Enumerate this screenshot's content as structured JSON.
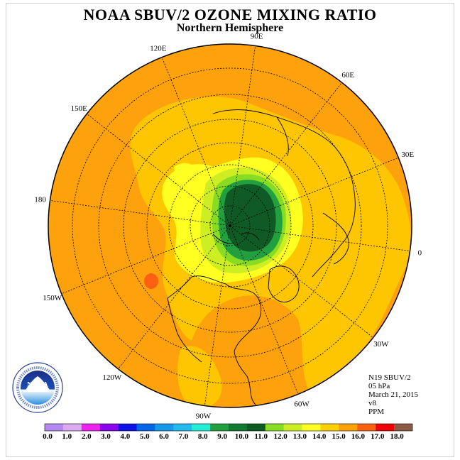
{
  "title": "NOAA SBUV/2 OZONE MIXING RATIO",
  "subtitle": "Northern Hemisphere",
  "longitude_labels": [
    {
      "text": "90E",
      "lon": 90
    },
    {
      "text": "60E",
      "lon": 60
    },
    {
      "text": "30E",
      "lon": 30
    },
    {
      "text": "0",
      "lon": 0
    },
    {
      "text": "30W",
      "lon": -30
    },
    {
      "text": "60W",
      "lon": -60
    },
    {
      "text": "90W",
      "lon": -90
    },
    {
      "text": "120W",
      "lon": -120
    },
    {
      "text": "150W",
      "lon": -150
    },
    {
      "text": "180",
      "lon": 180
    },
    {
      "text": "150E",
      "lon": 150
    },
    {
      "text": "120E",
      "lon": 120
    }
  ],
  "info": {
    "instrument": "N19 SBUV/2",
    "level": "05 hPa",
    "date": "March 21, 2015",
    "version": "v8",
    "units": "PPM"
  },
  "colorbar": {
    "labels": [
      "0.0",
      "1.0",
      "2.0",
      "3.0",
      "4.0",
      "5.0",
      "6.0",
      "7.0",
      "8.0",
      "9.0",
      "10.0",
      "11.0",
      "12.0",
      "13.0",
      "14.0",
      "15.0",
      "16.0",
      "17.0",
      "18.0"
    ],
    "colors": [
      "#b388f0",
      "#dcaaf0",
      "#ee22ee",
      "#8800ee",
      "#1010e8",
      "#0066e8",
      "#1499ec",
      "#22bbee",
      "#22eed4",
      "#22a040",
      "#107a30",
      "#0c5a22",
      "#88dd22",
      "#ccee22",
      "#ffff22",
      "#fdd000",
      "#fda000",
      "#fd6010",
      "#ee0000",
      "#8a5a44"
    ]
  },
  "map": {
    "projection": "north polar stereographic",
    "background_color": "#fda20c",
    "contour_levels_shown": [
      "13.0-14.0",
      "12.0-13.0",
      "11.0-12.0",
      "10.0-11.0",
      "9.0-10.0",
      "16.0-17.0"
    ],
    "ozone_max_region_color": "#0f5a25"
  }
}
